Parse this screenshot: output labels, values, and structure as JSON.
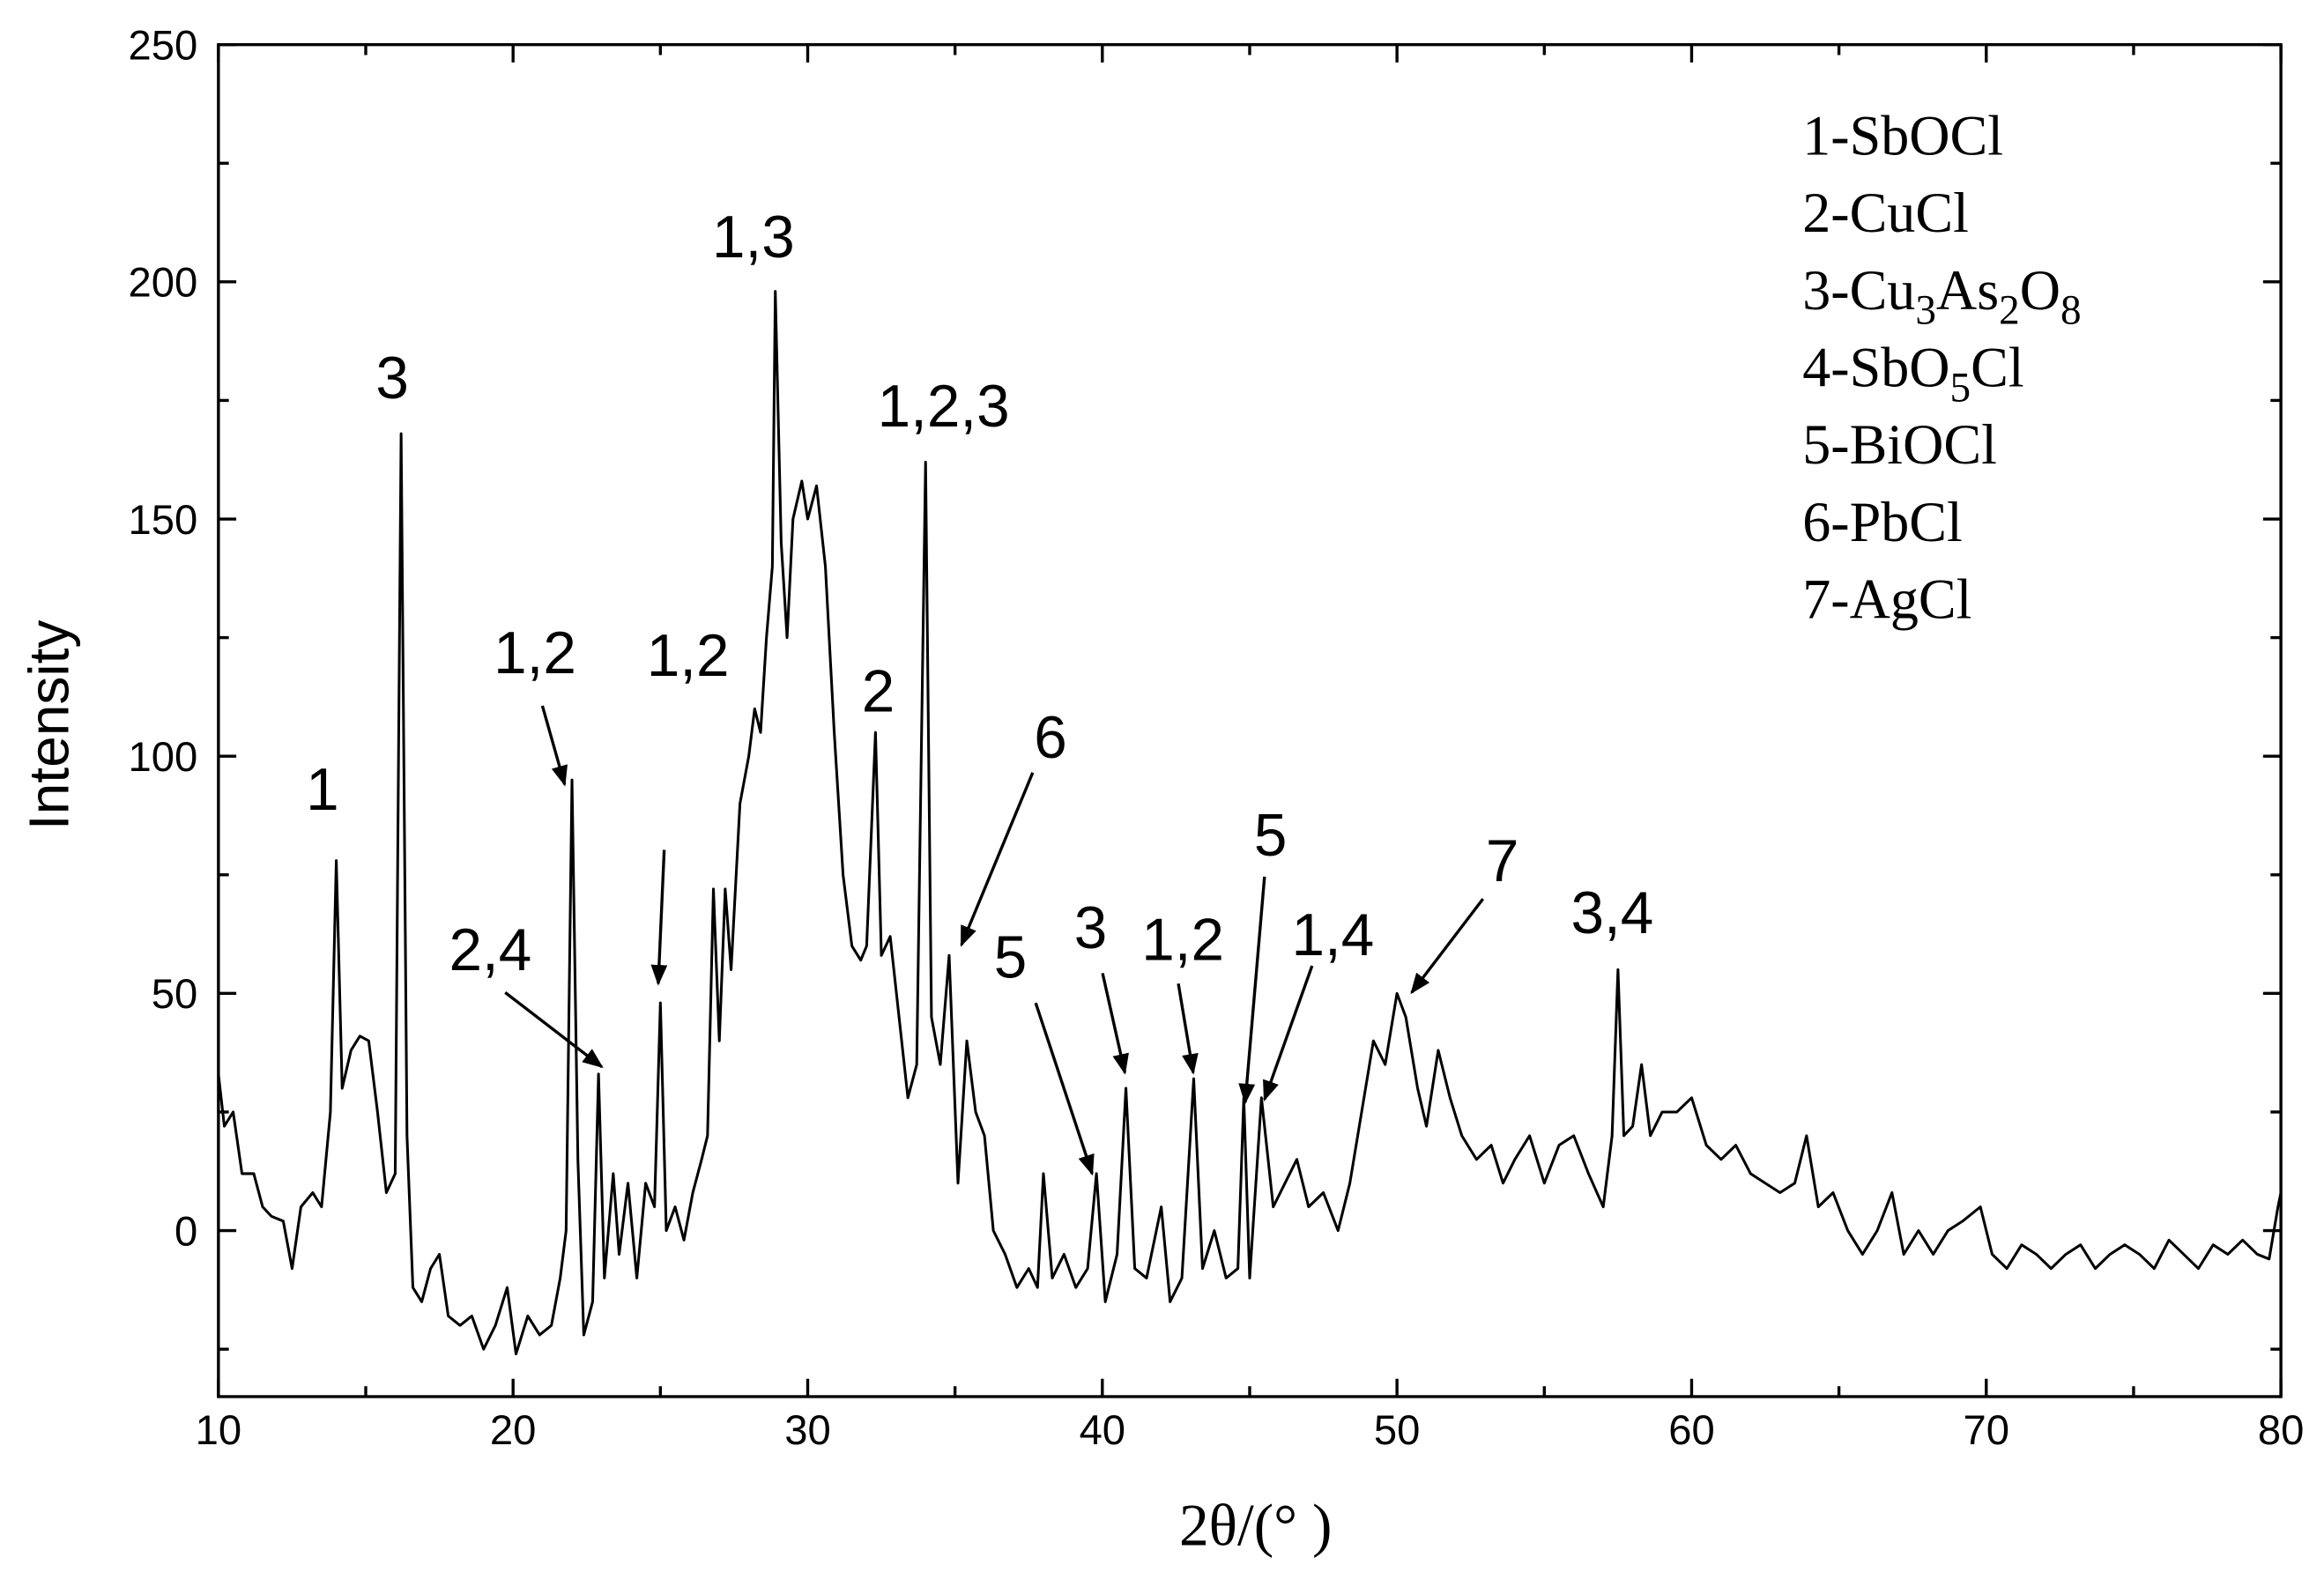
{
  "chart_data": {
    "type": "line",
    "xlabel": "2θ/(° )",
    "ylabel": "Intensity",
    "xlim": [
      10,
      80
    ],
    "ylim": [
      -35,
      250
    ],
    "xticks": [
      10,
      20,
      30,
      40,
      50,
      60,
      70,
      80
    ],
    "yticks": [
      0,
      50,
      100,
      150,
      200,
      250
    ],
    "xminor_ticks": [
      15,
      25,
      35,
      45,
      55,
      65,
      75
    ],
    "yminor_ticks": [
      -25,
      25,
      75,
      125,
      175,
      225
    ],
    "legend": [
      "1-SbOCl",
      "2-CuCl",
      "3-Cu3As2O8",
      "4-SbO5Cl",
      "5-BiOCl",
      "6-PbCl",
      "7-AgCl"
    ],
    "annotations": [
      "1",
      "3",
      "1,2",
      "1,2",
      "2,4",
      "1,3",
      "1,2,3",
      "2",
      "6",
      "5",
      "3",
      "1,2",
      "5",
      "1,4",
      "7",
      "3,4"
    ],
    "series": [
      {
        "color": "#000000",
        "x": [
          10,
          10.2,
          10.5,
          10.8,
          11.2,
          11.5,
          11.8,
          12.2,
          12.5,
          12.8,
          13.2,
          13.5,
          13.8,
          14.0,
          14.2,
          14.5,
          14.8,
          15.1,
          15.4,
          15.7,
          16.0,
          16.2,
          16.4,
          16.6,
          16.9,
          17.2,
          17.5,
          17.8,
          18.2,
          18.6,
          19.0,
          19.4,
          19.8,
          20.1,
          20.5,
          20.9,
          21.3,
          21.6,
          21.8,
          22.0,
          22.2,
          22.4,
          22.7,
          22.9,
          23.1,
          23.4,
          23.6,
          23.9,
          24.2,
          24.5,
          24.8,
          25.0,
          25.2,
          25.5,
          25.8,
          26.1,
          26.4,
          26.6,
          26.8,
          27.0,
          27.2,
          27.4,
          27.7,
          28.0,
          28.2,
          28.4,
          28.6,
          28.8,
          28.9,
          29.1,
          29.3,
          29.5,
          29.8,
          30.0,
          30.3,
          30.6,
          30.9,
          31.2,
          31.5,
          31.8,
          32.0,
          32.3,
          32.5,
          32.8,
          33.1,
          33.4,
          33.7,
          34.0,
          34.2,
          34.5,
          34.8,
          35.1,
          35.4,
          35.7,
          36.0,
          36.3,
          36.7,
          37.1,
          37.5,
          37.8,
          38.0,
          38.3,
          38.7,
          39.1,
          39.5,
          39.8,
          40.1,
          40.5,
          40.8,
          41.1,
          41.5,
          42.0,
          42.3,
          42.7,
          43.1,
          43.4,
          43.8,
          44.2,
          44.6,
          44.8,
          45.0,
          45.4,
          45.8,
          46.2,
          46.6,
          47.0,
          47.5,
          48.0,
          48.4,
          48.8,
          49.2,
          49.6,
          50.0,
          50.3,
          50.7,
          51.0,
          51.4,
          51.8,
          52.2,
          52.7,
          53.2,
          53.6,
          54.0,
          54.5,
          55.0,
          55.5,
          56.0,
          56.5,
          57.0,
          57.3,
          57.5,
          57.7,
          58.0,
          58.3,
          58.6,
          59.0,
          59.5,
          60.0,
          60.5,
          61.0,
          61.5,
          62.0,
          62.5,
          63.0,
          63.5,
          63.9,
          64.3,
          64.8,
          65.3,
          65.8,
          66.3,
          66.8,
          67.2,
          67.7,
          68.2,
          68.7,
          69.2,
          69.8,
          70.2,
          70.7,
          71.2,
          71.7,
          72.2,
          72.7,
          73.2,
          73.7,
          74.2,
          74.7,
          75.2,
          75.7,
          76.2,
          76.7,
          77.2,
          77.7,
          78.2,
          78.7,
          79.2,
          79.6,
          79.9,
          80.0
        ],
        "values": [
          33,
          22,
          25,
          12,
          12,
          5,
          3,
          2,
          -8,
          5,
          8,
          5,
          25,
          78,
          30,
          38,
          41,
          40,
          25,
          8,
          12,
          168,
          20,
          -12,
          -15,
          -8,
          -5,
          -18,
          -20,
          -18,
          -25,
          -20,
          -12,
          -26,
          -18,
          -22,
          -20,
          -10,
          0,
          95,
          15,
          -22,
          -15,
          33,
          -10,
          12,
          -5,
          10,
          -10,
          10,
          5,
          48,
          0,
          5,
          -2,
          8,
          15,
          20,
          72,
          40,
          72,
          55,
          90,
          100,
          110,
          105,
          125,
          140,
          198,
          145,
          125,
          150,
          158,
          150,
          157,
          140,
          105,
          75,
          60,
          57,
          60,
          105,
          58,
          62,
          45,
          28,
          35,
          162,
          45,
          35,
          58,
          10,
          40,
          25,
          20,
          0,
          -5,
          -12,
          -8,
          -12,
          12,
          -10,
          -5,
          -12,
          -8,
          12,
          -15,
          -5,
          30,
          -8,
          -10,
          5,
          -15,
          -10,
          32,
          -8,
          0,
          -10,
          -8,
          28,
          -10,
          28,
          5,
          10,
          15,
          5,
          8,
          0,
          10,
          25,
          40,
          35,
          50,
          45,
          30,
          22,
          38,
          28,
          20,
          15,
          18,
          10,
          15,
          20,
          10,
          18,
          20,
          12,
          5,
          20,
          55,
          20,
          22,
          35,
          20,
          25,
          25,
          28,
          18,
          15,
          18,
          12,
          10,
          8,
          10,
          20,
          5,
          8,
          0,
          -5,
          0,
          8,
          -5,
          0,
          -5,
          0,
          2,
          5,
          -5,
          -8,
          -3,
          -5,
          -8,
          -5,
          -3,
          -8,
          -5,
          -3,
          -5,
          -8,
          -2,
          -5,
          -8,
          -3,
          -5,
          -2,
          -5,
          -6,
          5,
          8
        ]
      }
    ]
  }
}
